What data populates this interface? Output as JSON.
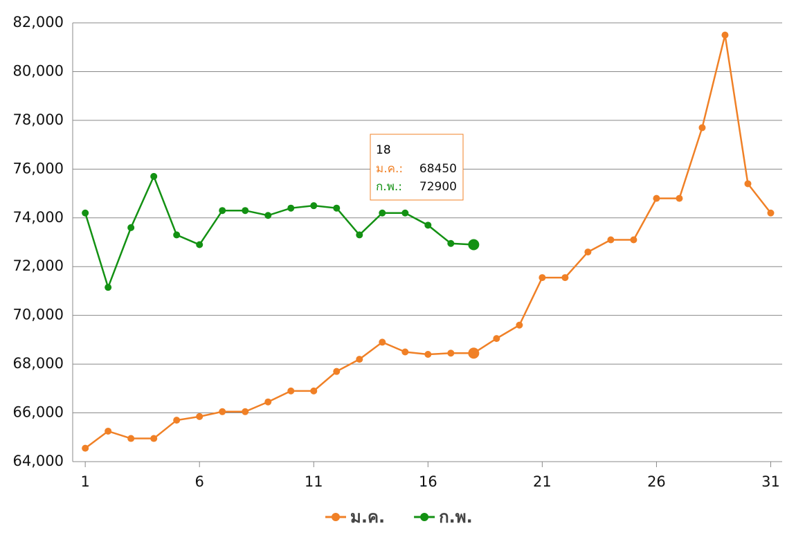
{
  "chart_data": {
    "type": "line",
    "x": [
      1,
      2,
      3,
      4,
      5,
      6,
      7,
      8,
      9,
      10,
      11,
      12,
      13,
      14,
      15,
      16,
      17,
      18,
      19,
      20,
      21,
      22,
      23,
      24,
      25,
      26,
      27,
      28,
      29,
      30,
      31
    ],
    "series": [
      {
        "name": "ม.ค.",
        "color": "#f08026",
        "values": [
          64550,
          65250,
          64950,
          64950,
          65700,
          65850,
          66050,
          66050,
          66450,
          66900,
          66900,
          67700,
          68200,
          68900,
          68500,
          68400,
          68450,
          68450,
          69050,
          69600,
          71550,
          71550,
          72600,
          73100,
          73100,
          74800,
          74800,
          77700,
          81500,
          75400,
          74200
        ]
      },
      {
        "name": "ก.พ.",
        "color": "#139113",
        "values": [
          74200,
          71150,
          73600,
          75700,
          73300,
          72900,
          74300,
          74300,
          74100,
          74400,
          74500,
          74400,
          73300,
          74200,
          74200,
          73700,
          72950,
          72900,
          null,
          null,
          null,
          null,
          null,
          null,
          null,
          null,
          null,
          null,
          null,
          null,
          null
        ]
      }
    ],
    "xlim": [
      0.45,
      31.5
    ],
    "xticks": [
      1,
      6,
      11,
      16,
      21,
      26,
      31
    ],
    "ylim": [
      64000,
      82000
    ],
    "yticks": [
      {
        "value": 64000,
        "label": "64,000"
      },
      {
        "value": 66000,
        "label": "66,000"
      },
      {
        "value": 68000,
        "label": "68,000"
      },
      {
        "value": 70000,
        "label": "70,000"
      },
      {
        "value": 72000,
        "label": "72,000"
      },
      {
        "value": 74000,
        "label": "74,000"
      },
      {
        "value": 76000,
        "label": "76,000"
      },
      {
        "value": 78000,
        "label": "78,000"
      },
      {
        "value": 80000,
        "label": "80,000"
      },
      {
        "value": 82000,
        "label": "82,000"
      }
    ],
    "grid": true,
    "legend": "bottom",
    "tooltip": {
      "x": 18,
      "rows": [
        {
          "label": "ม.ค.:",
          "value": 68450
        },
        {
          "label": "ก.พ.:",
          "value": 72900
        }
      ]
    }
  }
}
